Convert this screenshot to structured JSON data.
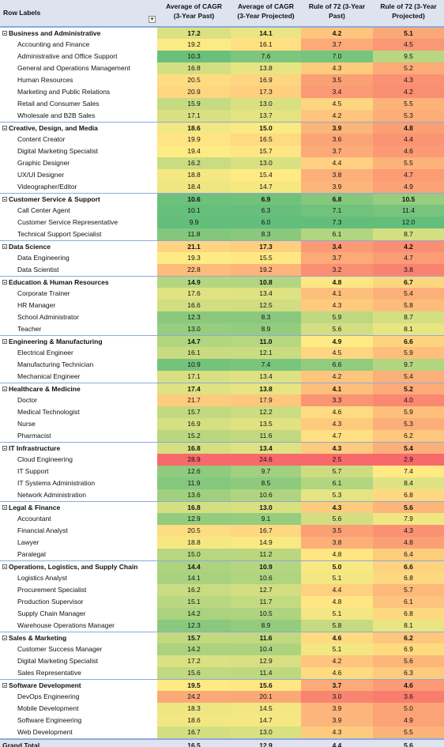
{
  "headers": {
    "row_labels": "Row Labels",
    "col1_line1": "Average of CAGR",
    "col1_line2": "(3-Year Past)",
    "col2_line1": "Average of CAGR",
    "col2_line2": "(3-Year Projected)",
    "col3_line1": "Rule of 72 (3-Year",
    "col3_line2": "Past)",
    "col4_line1": "Rule of 72 (3-Year",
    "col4_line2": "Projected)"
  },
  "rows": [
    {
      "type": "cat",
      "label": "Business and Administrative",
      "v": [
        "17.2",
        "14.1",
        "4.2",
        "5.1"
      ]
    },
    {
      "type": "item",
      "label": "Accounting and Finance",
      "v": [
        "19.2",
        "16.1",
        "3.7",
        "4.5"
      ]
    },
    {
      "type": "item",
      "label": "Administrative and Office Support",
      "v": [
        "10.3",
        "7.6",
        "7.0",
        "9.5"
      ]
    },
    {
      "type": "item",
      "label": "General and Operations Management",
      "v": [
        "16.8",
        "13.8",
        "4.3",
        "5.2"
      ]
    },
    {
      "type": "item",
      "label": "Human Resources",
      "v": [
        "20.5",
        "16.9",
        "3.5",
        "4.3"
      ]
    },
    {
      "type": "item",
      "label": "Marketing and Public Relations",
      "v": [
        "20.9",
        "17.3",
        "3.4",
        "4.2"
      ]
    },
    {
      "type": "item",
      "label": "Retail and Consumer Sales",
      "v": [
        "15.9",
        "13.0",
        "4.5",
        "5.5"
      ]
    },
    {
      "type": "item",
      "label": "Wholesale and B2B Sales",
      "v": [
        "17.1",
        "13.7",
        "4.2",
        "5.3"
      ]
    },
    {
      "type": "cat",
      "label": "Creative, Design, and Media",
      "v": [
        "18.6",
        "15.0",
        "3.9",
        "4.8"
      ]
    },
    {
      "type": "item",
      "label": "Content Creator",
      "v": [
        "19.9",
        "16.5",
        "3.6",
        "4.4"
      ]
    },
    {
      "type": "item",
      "label": "Digital Marketing Specialist",
      "v": [
        "19.4",
        "15.7",
        "3.7",
        "4.6"
      ]
    },
    {
      "type": "item",
      "label": "Graphic Designer",
      "v": [
        "16.2",
        "13.0",
        "4.4",
        "5.5"
      ]
    },
    {
      "type": "item",
      "label": "UX/UI Designer",
      "v": [
        "18.8",
        "15.4",
        "3.8",
        "4.7"
      ]
    },
    {
      "type": "item",
      "label": "Videographer/Editor",
      "v": [
        "18.4",
        "14.7",
        "3.9",
        "4.9"
      ]
    },
    {
      "type": "cat",
      "label": "Customer Service & Support",
      "v": [
        "10.6",
        "6.9",
        "6.8",
        "10.5"
      ]
    },
    {
      "type": "item",
      "label": "Call Center Agent",
      "v": [
        "10.1",
        "6.3",
        "7.1",
        "11.4"
      ]
    },
    {
      "type": "item",
      "label": "Customer Service Representative",
      "v": [
        "9.9",
        "6.0",
        "7.3",
        "12.0"
      ]
    },
    {
      "type": "item",
      "label": "Technical Support Specialist",
      "v": [
        "11.8",
        "8.3",
        "6.1",
        "8.7"
      ]
    },
    {
      "type": "cat",
      "label": "Data Science",
      "v": [
        "21.1",
        "17.3",
        "3.4",
        "4.2"
      ]
    },
    {
      "type": "item",
      "label": "Data Engineering",
      "v": [
        "19.3",
        "15.5",
        "3.7",
        "4.7"
      ]
    },
    {
      "type": "item",
      "label": "Data Scientist",
      "v": [
        "22.8",
        "19.2",
        "3.2",
        "3.8"
      ]
    },
    {
      "type": "cat",
      "label": "Education & Human Resources",
      "v": [
        "14.9",
        "10.8",
        "4.8",
        "6.7"
      ]
    },
    {
      "type": "item",
      "label": "Corporate Trainer",
      "v": [
        "17.6",
        "13.4",
        "4.1",
        "5.4"
      ]
    },
    {
      "type": "item",
      "label": "HR Manager",
      "v": [
        "16.6",
        "12.5",
        "4.3",
        "5.8"
      ]
    },
    {
      "type": "item",
      "label": "School Administrator",
      "v": [
        "12.3",
        "8.3",
        "5.9",
        "8.7"
      ]
    },
    {
      "type": "item",
      "label": "Teacher",
      "v": [
        "13.0",
        "8.9",
        "5.6",
        "8.1"
      ]
    },
    {
      "type": "cat",
      "label": "Engineering & Manufacturing",
      "v": [
        "14.7",
        "11.0",
        "4.9",
        "6.6"
      ]
    },
    {
      "type": "item",
      "label": "Electrical Engineer",
      "v": [
        "16.1",
        "12.1",
        "4.5",
        "5.9"
      ]
    },
    {
      "type": "item",
      "label": "Manufacturing Technician",
      "v": [
        "10.9",
        "7.4",
        "6.6",
        "9.7"
      ]
    },
    {
      "type": "item",
      "label": "Mechanical Engineer",
      "v": [
        "17.1",
        "13.4",
        "4.2",
        "5.4"
      ]
    },
    {
      "type": "cat",
      "label": "Healthcare & Medicine",
      "v": [
        "17.4",
        "13.8",
        "4.1",
        "5.2"
      ]
    },
    {
      "type": "item",
      "label": "Doctor",
      "v": [
        "21.7",
        "17.9",
        "3.3",
        "4.0"
      ]
    },
    {
      "type": "item",
      "label": "Medical Technologist",
      "v": [
        "15.7",
        "12.2",
        "4.6",
        "5.9"
      ]
    },
    {
      "type": "item",
      "label": "Nurse",
      "v": [
        "16.9",
        "13.5",
        "4.3",
        "5.3"
      ]
    },
    {
      "type": "item",
      "label": "Pharmacist",
      "v": [
        "15.2",
        "11.6",
        "4.7",
        "6.2"
      ]
    },
    {
      "type": "cat",
      "label": "IT Infrastructure",
      "v": [
        "16.8",
        "13.4",
        "4.3",
        "5.4"
      ]
    },
    {
      "type": "item",
      "label": "Cloud Engineering",
      "v": [
        "28.9",
        "24.6",
        "2.5",
        "2.9"
      ]
    },
    {
      "type": "item",
      "label": "IT Support",
      "v": [
        "12.6",
        "9.7",
        "5.7",
        "7.4"
      ]
    },
    {
      "type": "item",
      "label": "IT Systems Administration",
      "v": [
        "11.9",
        "8.5",
        "6.1",
        "8.4"
      ]
    },
    {
      "type": "item",
      "label": "Network Administration",
      "v": [
        "13.6",
        "10.6",
        "5.3",
        "6.8"
      ]
    },
    {
      "type": "cat",
      "label": "Legal & Finance",
      "v": [
        "16.8",
        "13.0",
        "4.3",
        "5.6"
      ]
    },
    {
      "type": "item",
      "label": "Accountant",
      "v": [
        "12.9",
        "9.1",
        "5.6",
        "7.9"
      ]
    },
    {
      "type": "item",
      "label": "Financial Analyst",
      "v": [
        "20.5",
        "16.7",
        "3.5",
        "4.3"
      ]
    },
    {
      "type": "item",
      "label": "Lawyer",
      "v": [
        "18.8",
        "14.9",
        "3.8",
        "4.8"
      ]
    },
    {
      "type": "item",
      "label": "Paralegal",
      "v": [
        "15.0",
        "11.2",
        "4.8",
        "6.4"
      ]
    },
    {
      "type": "cat",
      "label": "Operations, Logistics, and Supply Chain",
      "v": [
        "14.4",
        "10.9",
        "5.0",
        "6.6"
      ]
    },
    {
      "type": "item",
      "label": "Logistics Analyst",
      "v": [
        "14.1",
        "10.6",
        "5.1",
        "6.8"
      ]
    },
    {
      "type": "item",
      "label": "Procurement Specialist",
      "v": [
        "16.2",
        "12.7",
        "4.4",
        "5.7"
      ]
    },
    {
      "type": "item",
      "label": "Production Supervisor",
      "v": [
        "15.1",
        "11.7",
        "4.8",
        "6.1"
      ]
    },
    {
      "type": "item",
      "label": "Supply Chain Manager",
      "v": [
        "14.2",
        "10.5",
        "5.1",
        "6.8"
      ]
    },
    {
      "type": "item",
      "label": "Warehouse Operations Manager",
      "v": [
        "12.3",
        "8.9",
        "5.8",
        "8.1"
      ]
    },
    {
      "type": "cat",
      "label": "Sales & Marketing",
      "v": [
        "15.7",
        "11.6",
        "4.6",
        "6.2"
      ]
    },
    {
      "type": "item",
      "label": "Customer Success Manager",
      "v": [
        "14.2",
        "10.4",
        "5.1",
        "6.9"
      ]
    },
    {
      "type": "item",
      "label": "Digital Marketing Specialist",
      "v": [
        "17.2",
        "12.9",
        "4.2",
        "5.6"
      ]
    },
    {
      "type": "item",
      "label": "Sales Representative",
      "v": [
        "15.6",
        "11.4",
        "4.6",
        "6.3"
      ]
    },
    {
      "type": "cat",
      "label": "Software Development",
      "v": [
        "19.5",
        "15.6",
        "3.7",
        "4.6"
      ]
    },
    {
      "type": "item",
      "label": "DevOps Engineering",
      "v": [
        "24.2",
        "20.1",
        "3.0",
        "3.6"
      ]
    },
    {
      "type": "item",
      "label": "Mobile Development",
      "v": [
        "18.3",
        "14.5",
        "3.9",
        "5.0"
      ]
    },
    {
      "type": "item",
      "label": "Software Engineering",
      "v": [
        "18.6",
        "14.7",
        "3.9",
        "4.9"
      ]
    },
    {
      "type": "item",
      "label": "Web Development",
      "v": [
        "16.7",
        "13.0",
        "4.3",
        "5.5"
      ]
    },
    {
      "type": "total",
      "label": "Grand Total",
      "v": [
        "16.5",
        "12.9",
        "4.4",
        "5.6"
      ]
    }
  ],
  "scale_colors": {
    "low": "#f8696b",
    "mid": "#ffeb84",
    "high": "#63be7b"
  }
}
